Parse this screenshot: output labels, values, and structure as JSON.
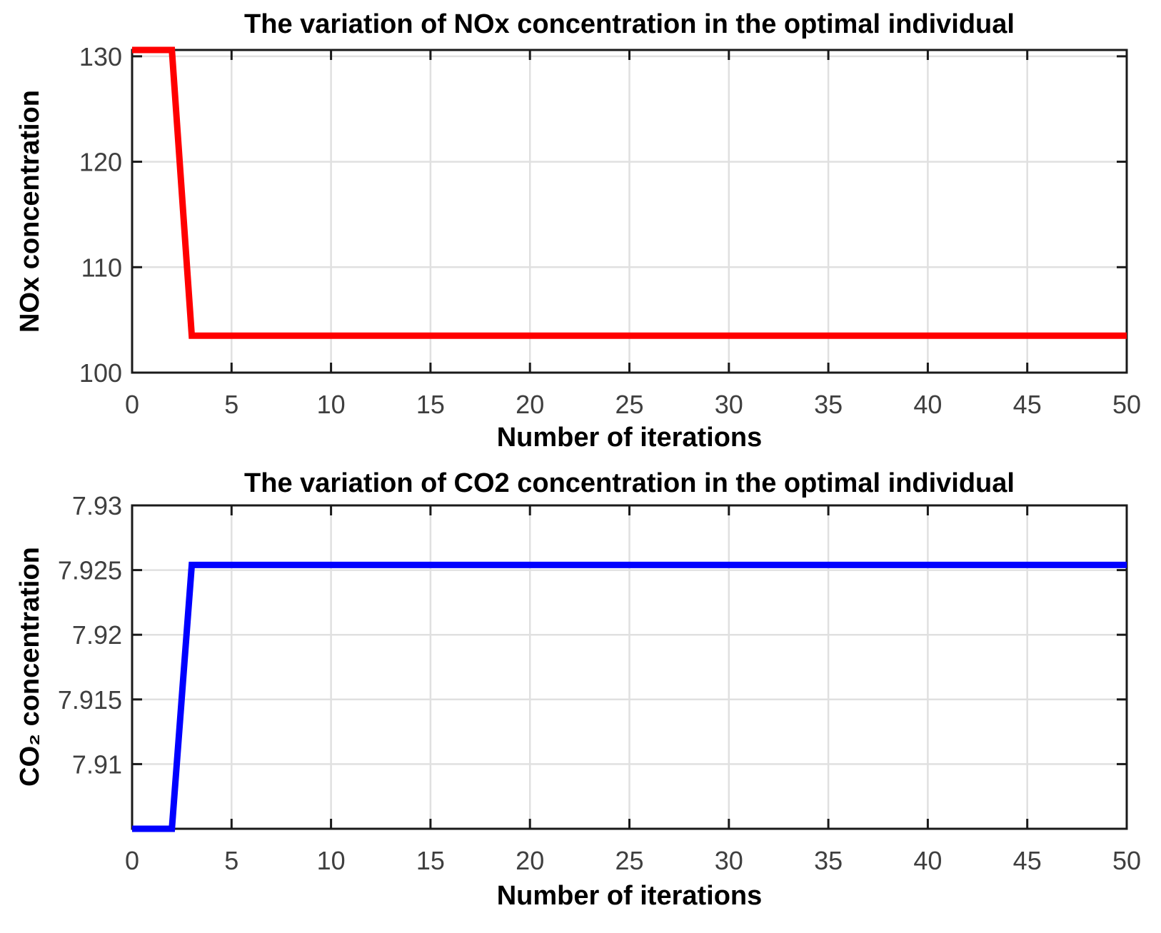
{
  "figure": {
    "background": "#ffffff"
  },
  "style": {
    "axis_color": "#1a1a1a",
    "grid_color": "#e0e0e0",
    "tick_label_color": "#3f3f3f",
    "title_color": "#000000",
    "nox_line_color": "#ff0000",
    "co2_line_color": "#0000ff"
  },
  "chart_data": [
    {
      "type": "line",
      "title": "The variation of NOx concentration in the optimal individual",
      "xlabel": "Number of iterations",
      "ylabel": "NOx concentration",
      "line_color": "#ff0000",
      "x": [
        0,
        2,
        3,
        50
      ],
      "y": [
        130.6,
        130.6,
        103.5,
        103.5
      ],
      "xlim": [
        0,
        50
      ],
      "ylim": [
        100,
        130.6
      ],
      "xticks": [
        0,
        5,
        10,
        15,
        20,
        25,
        30,
        35,
        40,
        45,
        50
      ],
      "xtick_labels": [
        "0",
        "5",
        "10",
        "15",
        "20",
        "25",
        "30",
        "35",
        "40",
        "45",
        "50"
      ],
      "yticks": [
        100,
        110,
        120,
        130
      ],
      "ytick_labels": [
        "100",
        "110",
        "120",
        "130"
      ],
      "grid": true,
      "legend": null
    },
    {
      "type": "line",
      "title": "The variation of CO2 concentration in the optimal individual",
      "xlabel": "Number of iterations",
      "ylabel": "CO₂ concentration",
      "line_color": "#0000ff",
      "x": [
        0,
        2,
        3,
        50
      ],
      "y": [
        7.905,
        7.905,
        7.9254,
        7.9254
      ],
      "xlim": [
        0,
        50
      ],
      "ylim": [
        7.905,
        7.93
      ],
      "xticks": [
        0,
        5,
        10,
        15,
        20,
        25,
        30,
        35,
        40,
        45,
        50
      ],
      "xtick_labels": [
        "0",
        "5",
        "10",
        "15",
        "20",
        "25",
        "30",
        "35",
        "40",
        "45",
        "50"
      ],
      "yticks": [
        7.91,
        7.915,
        7.92,
        7.925,
        7.93
      ],
      "ytick_labels": [
        "7.91",
        "7.915",
        "7.92",
        "7.925",
        "7.93"
      ],
      "grid": true,
      "legend": null
    }
  ]
}
